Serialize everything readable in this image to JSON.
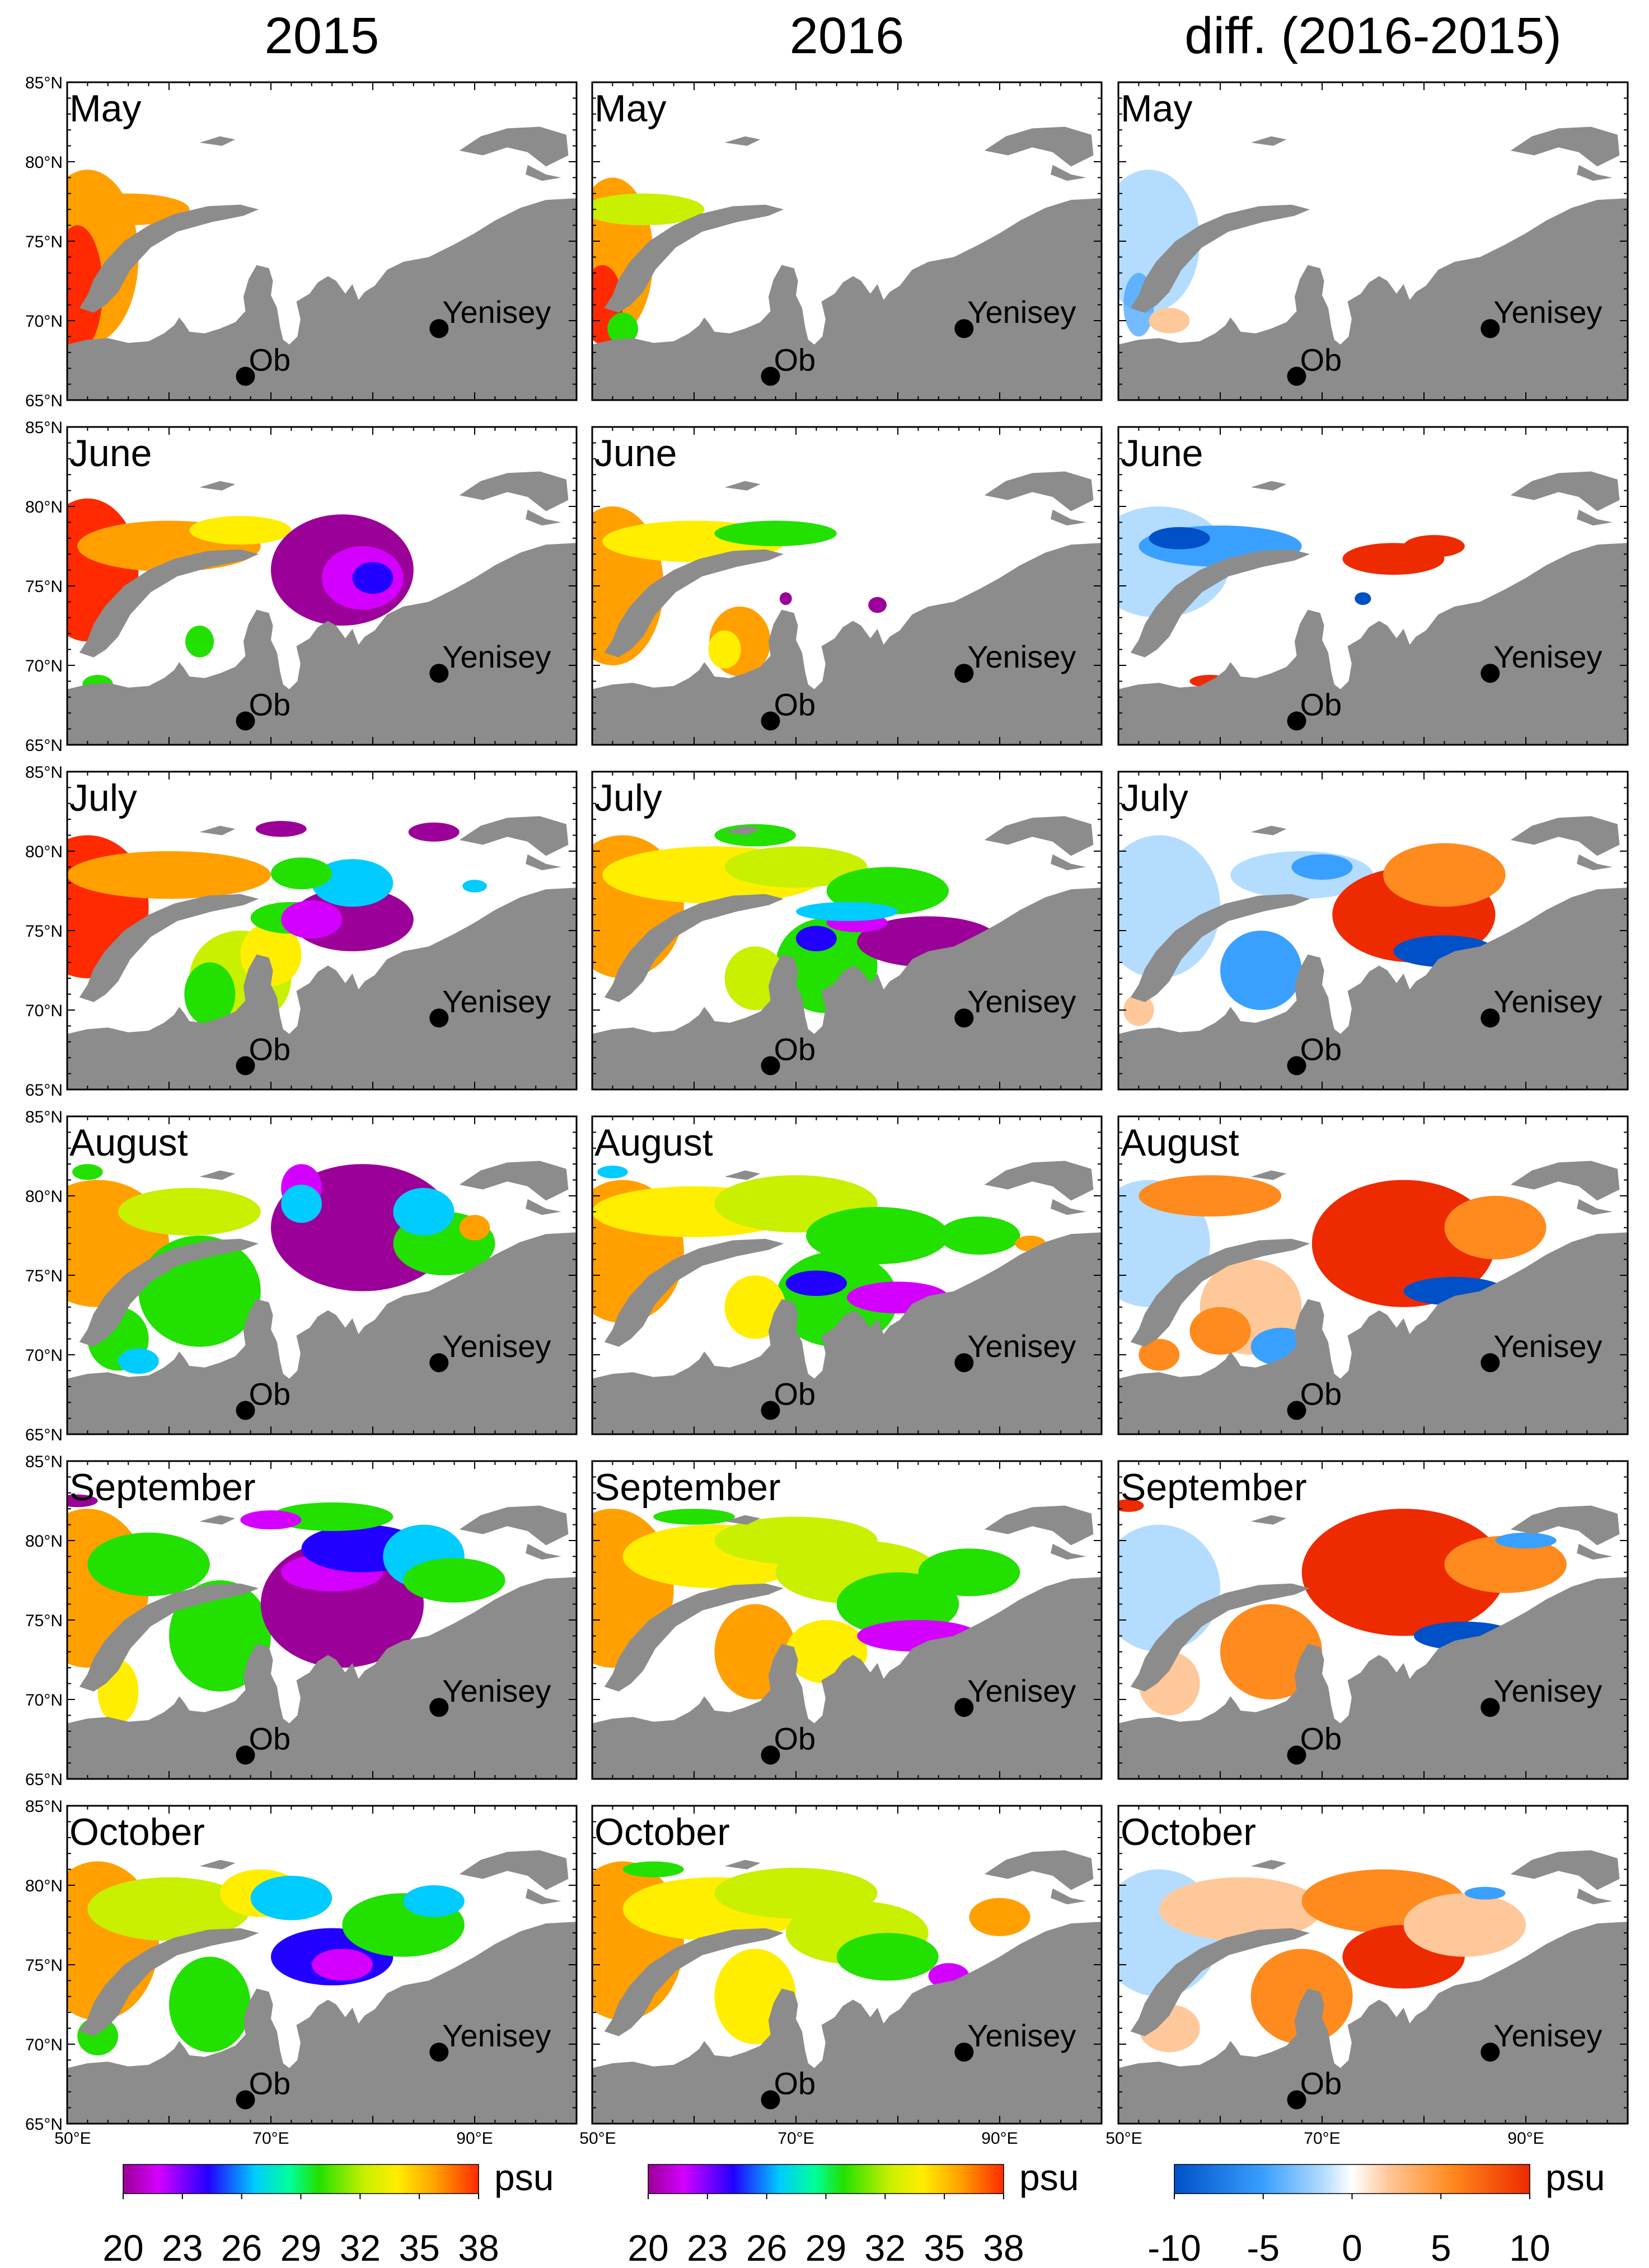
{
  "columns": [
    {
      "title": "2015"
    },
    {
      "title": "2016"
    },
    {
      "title": "diff. (2016-2015)"
    }
  ],
  "rows": [
    {
      "month": "May"
    },
    {
      "month": "June"
    },
    {
      "month": "July"
    },
    {
      "month": "August"
    },
    {
      "month": "September"
    },
    {
      "month": "October"
    }
  ],
  "lat_labels": [
    "85°N",
    "80°N",
    "75°N",
    "70°N",
    "65°N"
  ],
  "lon_labels": [
    "50°E",
    "70°E",
    "90°E"
  ],
  "rivers": [
    {
      "name": "Ob",
      "lon": 67.5,
      "lat": 66.5
    },
    {
      "name": "Yenisey",
      "lon": 86.5,
      "lat": 69.5
    }
  ],
  "colorbars": [
    {
      "unit": "psu",
      "ticks": [
        "20",
        "23",
        "26",
        "29",
        "32",
        "35",
        "38"
      ],
      "scale": "salinity"
    },
    {
      "unit": "psu",
      "ticks": [
        "20",
        "23",
        "26",
        "29",
        "32",
        "35",
        "38"
      ],
      "scale": "salinity"
    },
    {
      "unit": "psu",
      "ticks": [
        "-10",
        "-5",
        "0",
        "5",
        "10"
      ],
      "scale": "difference"
    }
  ],
  "colors": {
    "land": "#8c8c8c",
    "salinity_scale": [
      "#9b0098",
      "#d400ff",
      "#2200ff",
      "#00ccff",
      "#00ff99",
      "#22e000",
      "#c8f000",
      "#ffee00",
      "#ffa000",
      "#ff2a00"
    ],
    "difference_scale": [
      "#0050c8",
      "#39a0ff",
      "#b4dcff",
      "#ffffff",
      "#ffc89a",
      "#ff8a1e",
      "#ee2a00"
    ]
  }
}
